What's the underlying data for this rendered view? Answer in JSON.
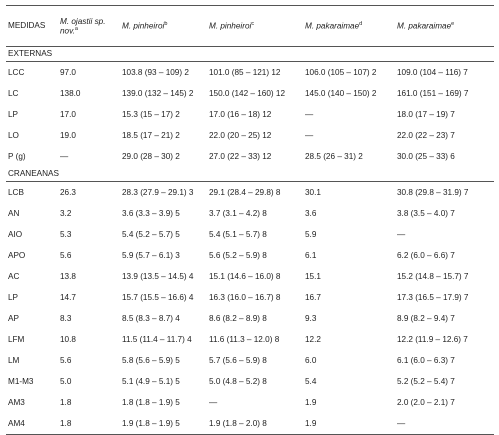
{
  "header": {
    "col0": "MEDIDAS",
    "col1": {
      "species": "M. ojastii sp. nov.",
      "sup": "a"
    },
    "col2": {
      "species": "M. pinheiroi",
      "sup": "b"
    },
    "col3": {
      "species": "M. pinheiroi",
      "sup": "c"
    },
    "col4": {
      "species": "M. pakaraimae",
      "sup": "d"
    },
    "col5": {
      "species": "M. pakaraimae",
      "sup": "e"
    }
  },
  "sections": {
    "externas": "EXTERNAS",
    "craneanas": "CRANEANAS"
  },
  "externas_rows": [
    [
      "LCC",
      "97.0",
      "103.8 (93 – 109) 2",
      "101.0 (85 – 121) 12",
      "106.0 (105 – 107) 2",
      "109.0 (104 – 116) 7"
    ],
    [
      "LC",
      "138.0",
      "139.0 (132 – 145) 2",
      "150.0 (142 – 160) 12",
      "145.0 (140 – 150) 2",
      "161.0 (151 – 169) 7"
    ],
    [
      "LP",
      "17.0",
      "15.3 (15 – 17) 2",
      "17.0 (16 – 18) 12",
      "—",
      "18.0 (17 – 19) 7"
    ],
    [
      "LO",
      "19.0",
      "18.5 (17 – 21) 2",
      "22.0 (20 – 25) 12",
      "—",
      "22.0 (22 – 23) 7"
    ],
    [
      "P (g)",
      "—",
      "29.0 (28 – 30) 2",
      "27.0 (22 – 33) 12",
      "28.5 (26 – 31) 2",
      "30.0 (25 – 33) 6"
    ]
  ],
  "craneanas_rows": [
    [
      "LCB",
      "26.3",
      "28.3 (27.9 – 29.1) 3",
      "29.1 (28.4 – 29.8) 8",
      "30.1",
      "30.8 (29.8 – 31.9) 7"
    ],
    [
      "AN",
      "3.2",
      "3.6 (3.3 – 3.9) 5",
      "3.7 (3.1 – 4.2) 8",
      "3.6",
      "3.8 (3.5 – 4.0) 7"
    ],
    [
      "AIO",
      "5.3",
      "5.4 (5.2 – 5.7) 5",
      "5.4 (5.1 – 5.7) 8",
      "5.9",
      "—"
    ],
    [
      "APO",
      "5.6",
      "5.9 (5.7 – 6.1) 3",
      "5.6 (5.2 – 5.9) 8",
      "6.1",
      "6.2 (6.0 – 6.6) 7"
    ],
    [
      "AC",
      "13.8",
      "13.9 (13.5 – 14.5) 4",
      "15.1 (14.6 – 16.0) 8",
      "15.1",
      "15.2 (14.8 – 15.7) 7"
    ],
    [
      "LP",
      "14.7",
      "15.7 (15.5 – 16.6) 4",
      "16.3 (16.0 – 16.7) 8",
      "16.7",
      "17.3 (16.5 – 17.9) 7"
    ],
    [
      "AP",
      "8.3",
      "8.5 (8.3 – 8.7) 4",
      "8.6 (8.2 – 8.9) 8",
      "9.3",
      "8.9 (8.2 – 9.4) 7"
    ],
    [
      "LFM",
      "10.8",
      "11.5 (11.4 – 11.7) 4",
      "11.6 (11.3 – 12.0) 8",
      "12.2",
      "12.2 (11.9 – 12.6) 7"
    ],
    [
      "LM",
      "5.6",
      "5.8 (5.6 – 5.9) 5",
      "5.7 (5.6 – 5.9) 8",
      "6.0",
      "6.1 (6.0 – 6.3) 7"
    ],
    [
      "M1-M3",
      "5.0",
      "5.1 (4.9 – 5.1) 5",
      "5.0 (4.8 – 5.2) 8",
      "5.4",
      "5.2 (5.2 – 5.4) 7"
    ],
    [
      "AM3",
      "1.8",
      "1.8 (1.8 – 1.9) 5",
      "—",
      "1.9",
      "2.0 (2.0 – 2.1) 7"
    ],
    [
      "AM4",
      "1.8",
      "1.9 (1.8 – 1.9) 5",
      "1.9 (1.8 – 2.0) 8",
      "1.9",
      "—"
    ]
  ]
}
